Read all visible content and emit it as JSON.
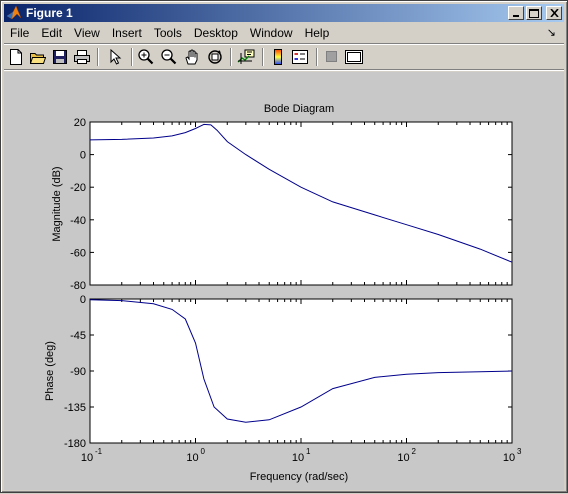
{
  "window": {
    "title": "Figure 1"
  },
  "menu": {
    "items": [
      "File",
      "Edit",
      "View",
      "Insert",
      "Tools",
      "Desktop",
      "Window",
      "Help"
    ]
  },
  "toolbar": {
    "buttons": [
      "new-figure",
      "open-file",
      "save",
      "print",
      "edit-plot",
      "zoom-in",
      "zoom-out",
      "pan",
      "rotate-3d",
      "data-cursor",
      "insert-colorbar",
      "insert-legend",
      "hide-plot-tools",
      "show-plot-tools"
    ]
  },
  "chart_data": {
    "type": "line",
    "title": "Bode Diagram",
    "xlabel": "Frequency  (rad/sec)",
    "xscale": "log",
    "xlim": [
      0.1,
      1000
    ],
    "x_tick_labels": [
      "10",
      "10",
      "10",
      "10",
      "10"
    ],
    "x_tick_exponents": [
      "-1",
      "0",
      "1",
      "2",
      "3"
    ],
    "line_color": "#00008b",
    "panels": [
      {
        "name": "magnitude",
        "ylabel": "Magnitude (dB)",
        "ylim": [
          -80,
          20
        ],
        "yticks": [
          20,
          0,
          -20,
          -40,
          -60,
          -80
        ],
        "series": [
          {
            "x": [
              0.1,
              0.2,
              0.4,
              0.6,
              0.8,
              1.0,
              1.2,
              1.4,
              1.6,
              2.0,
              3.0,
              5.0,
              10,
              20,
              50,
              100,
              200,
              500,
              1000
            ],
            "y": [
              9,
              9.3,
              10.2,
              11.5,
              13.5,
              16,
              18.5,
              18.2,
              15,
              8,
              0,
              -9,
              -20,
              -29,
              -37,
              -43,
              -49,
              -58,
              -66
            ]
          }
        ]
      },
      {
        "name": "phase",
        "ylabel": "Phase (deg)",
        "ylim": [
          -180,
          0
        ],
        "yticks": [
          0,
          -45,
          -90,
          -135,
          -180
        ],
        "series": [
          {
            "x": [
              0.1,
              0.2,
              0.4,
              0.6,
              0.8,
              1.0,
              1.2,
              1.5,
              2.0,
              3.0,
              5.0,
              10,
              20,
              50,
              100,
              200,
              500,
              1000
            ],
            "y": [
              -1,
              -2,
              -6,
              -13,
              -25,
              -55,
              -100,
              -135,
              -150,
              -154,
              -151,
              -135,
              -112,
              -98,
              -94,
              -92,
              -91,
              -90
            ]
          }
        ]
      }
    ]
  }
}
